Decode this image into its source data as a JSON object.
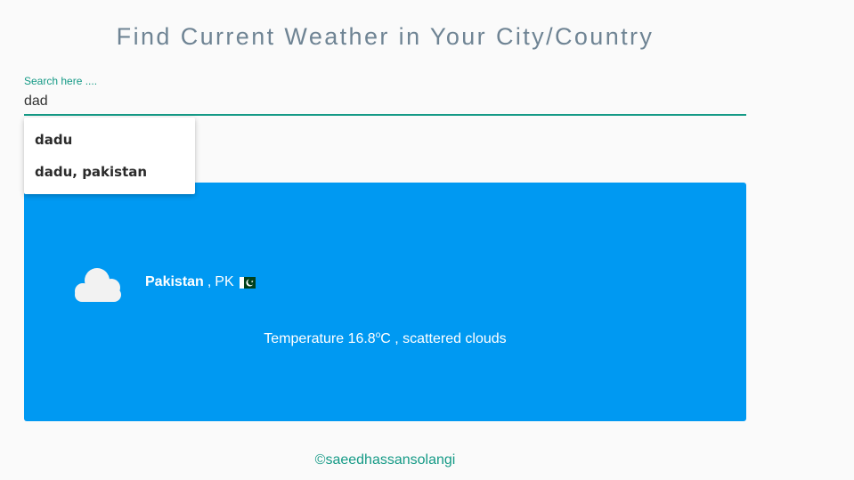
{
  "page_title": "Find Current Weather in Your City/Country",
  "search": {
    "label": "Search here ....",
    "value": "dad"
  },
  "suggestions": [
    "dadu",
    "dadu, pakistan"
  ],
  "weather": {
    "icon": "cloud-icon",
    "city": "Pakistan",
    "country_sep": ",",
    "country_code": "PK",
    "flag": "pakistan-flag-icon",
    "temp_prefix": "Temperature 16.8",
    "temp_degree": "o",
    "temp_unit": "C",
    "temp_description": ", scattered clouds",
    "card_color": "#0099f2"
  },
  "footer": "©saeedhassansolangi",
  "colors": {
    "accent": "#159a86",
    "title": "#6f8494"
  }
}
